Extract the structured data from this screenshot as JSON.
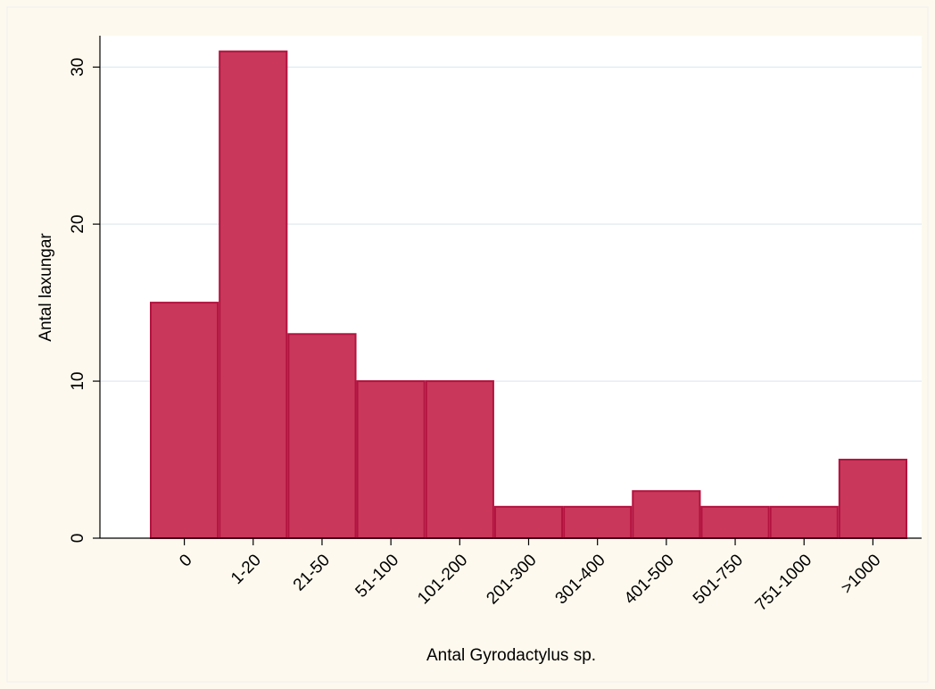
{
  "chart_data": {
    "type": "bar",
    "xlabel": "Antal Gyrodactylus sp.",
    "ylabel": "Antal laxungar",
    "categories": [
      "0",
      "1-20",
      "21-50",
      "51-100",
      "101-200",
      "201-300",
      "301-400",
      "401-500",
      "501-750",
      "751-1000",
      ">1000"
    ],
    "values": [
      15,
      31,
      13,
      10,
      10,
      2,
      2,
      3,
      2,
      2,
      5
    ],
    "color": "#c9375a",
    "ylim": [
      0,
      32
    ],
    "yticks": [
      0,
      10,
      20,
      30
    ],
    "grid": true
  }
}
